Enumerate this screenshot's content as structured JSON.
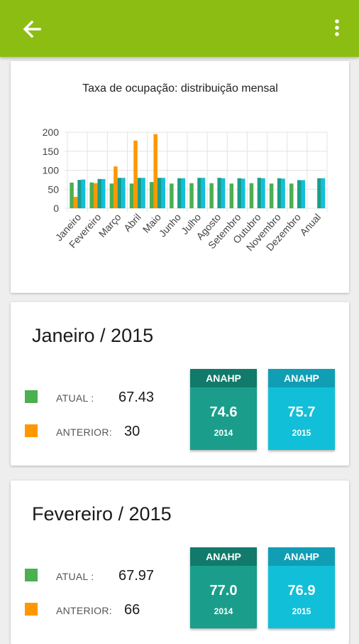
{
  "app": {
    "back_icon": "arrow-left-icon",
    "menu_icon": "more-vert-icon",
    "bar_color": "#8cbd12"
  },
  "chart_data": {
    "type": "bar",
    "title": "Taxa de ocupação: distribuição mensal",
    "categories": [
      "Janeiro",
      "Fevereiro",
      "Março",
      "Abril",
      "Maio",
      "Junho",
      "Julho",
      "Agosto",
      "Setembro",
      "Outubro",
      "Novembro",
      "Dezembro",
      "Anual"
    ],
    "ylim": [
      0,
      200
    ],
    "yticks": [
      0,
      50,
      100,
      150,
      200
    ],
    "grid": true,
    "series": [
      {
        "color": "#4caf50",
        "values": [
          67.43,
          67.97,
          65,
          65,
          69,
          65,
          66,
          66,
          65,
          66,
          65,
          65,
          null
        ]
      },
      {
        "color": "#ff9800",
        "values": [
          30,
          66,
          110,
          178,
          195,
          null,
          null,
          null,
          null,
          null,
          null,
          null,
          null
        ]
      },
      {
        "color": "#1a9e8b",
        "values": [
          74.6,
          77.0,
          80,
          80,
          80,
          79,
          80,
          80,
          79,
          80,
          79,
          74,
          79
        ]
      },
      {
        "color": "#12bfd8",
        "values": [
          75.7,
          76.9,
          80,
          80,
          80,
          79,
          80,
          79,
          78,
          79,
          78,
          74,
          79
        ]
      }
    ]
  },
  "cards": [
    {
      "title": "Janeiro / 2015",
      "atual_label": "ATUAL :",
      "atual_value": "67.43",
      "anterior_label": "ANTERIOR:",
      "anterior_value": "30",
      "atual_color": "#4caf50",
      "anterior_color": "#ff9800",
      "anahp_2014": {
        "label": "ANAHP",
        "value": "74.6",
        "year": "2014"
      },
      "anahp_2015": {
        "label": "ANAHP",
        "value": "75.7",
        "year": "2015"
      }
    },
    {
      "title": "Fevereiro / 2015",
      "atual_label": "ATUAL :",
      "atual_value": "67.97",
      "anterior_label": "ANTERIOR:",
      "anterior_value": "66",
      "atual_color": "#4caf50",
      "anterior_color": "#ff9800",
      "anahp_2014": {
        "label": "ANAHP",
        "value": "77.0",
        "year": "2014"
      },
      "anahp_2015": {
        "label": "ANAHP",
        "value": "76.9",
        "year": "2015"
      }
    }
  ]
}
